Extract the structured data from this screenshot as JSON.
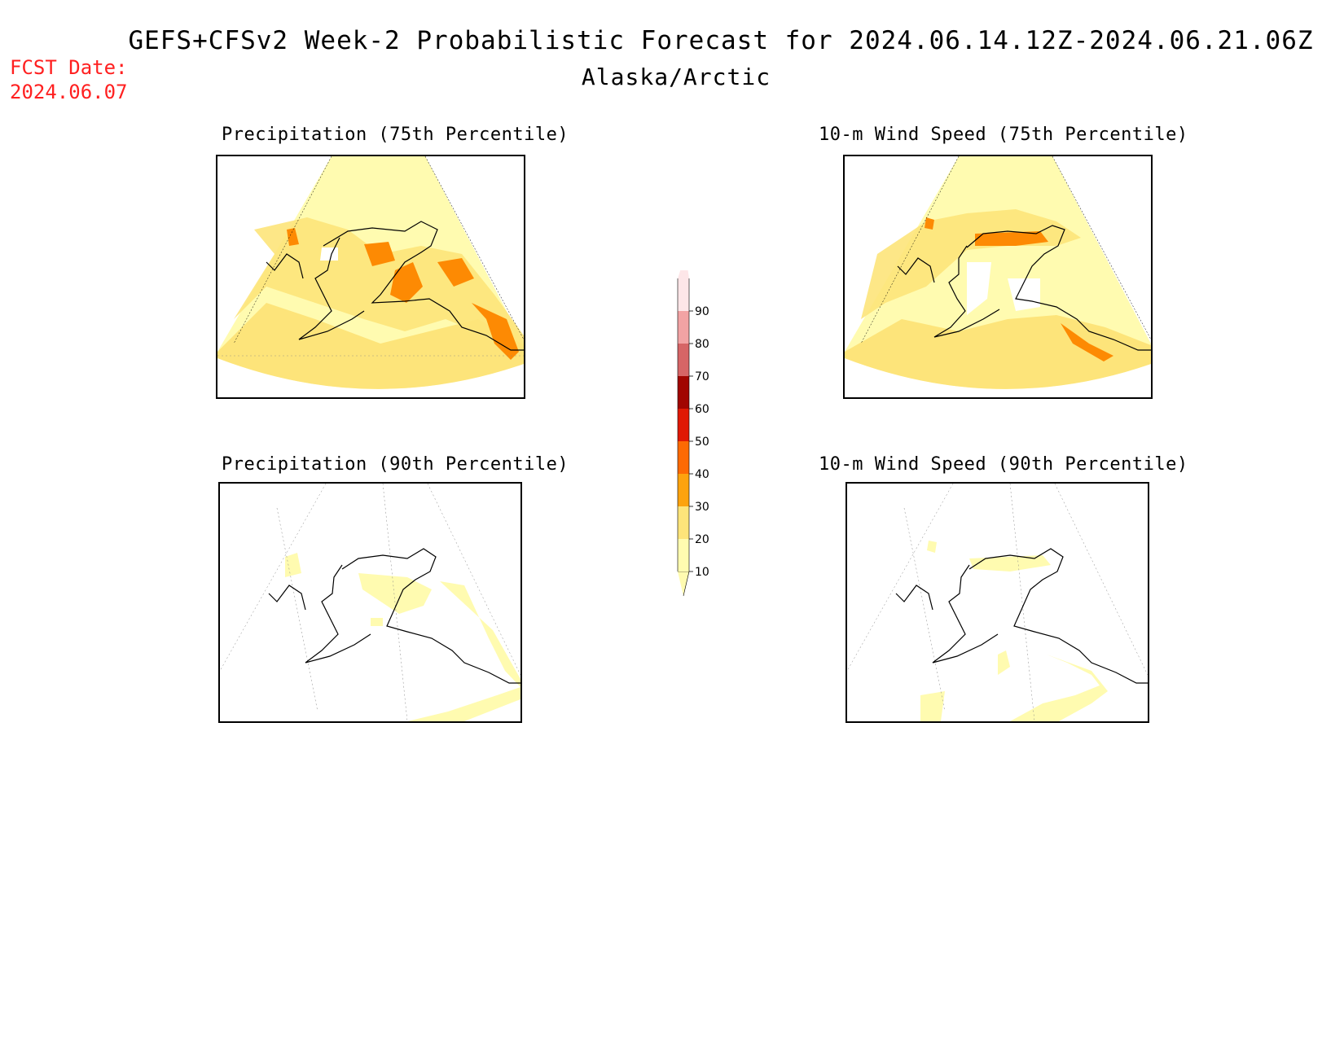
{
  "header": {
    "title": "GEFS+CFSv2 Week-2 Probabilistic Forecast for 2024.06.14.12Z-2024.06.21.06Z",
    "subtitle": "Alaska/Arctic",
    "fcst_date_label": "FCST Date:",
    "fcst_date_value": "2024.06.07"
  },
  "panels": [
    {
      "id": "precip-75",
      "title": "Precipitation (75th Percentile)"
    },
    {
      "id": "wind-75",
      "title": "10-m Wind Speed (75th Percentile)"
    },
    {
      "id": "precip-90",
      "title": "Precipitation (90th Percentile)"
    },
    {
      "id": "wind-90",
      "title": "10-m Wind Speed (90th Percentile)"
    }
  ],
  "legend": {
    "levels": [
      "10",
      "20",
      "30",
      "40",
      "50",
      "60",
      "70",
      "80",
      "90"
    ],
    "colors": [
      "#fffbb0",
      "#fde47a",
      "#fda30e",
      "#fd6a03",
      "#e01904",
      "#a10501",
      "#d66566",
      "#f2a3a4",
      "#fde6e8"
    ]
  }
}
